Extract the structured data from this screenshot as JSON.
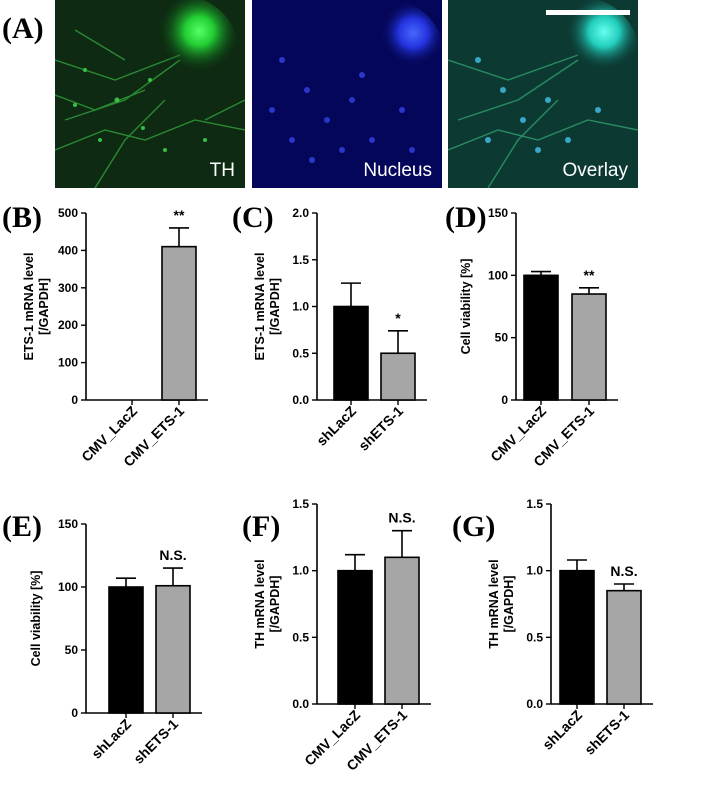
{
  "figure": {
    "panel_letters": [
      "(A)",
      "(B)",
      "(C)",
      "(D)",
      "(E)",
      "(F)",
      "(G)"
    ],
    "micrographs": [
      {
        "label": "TH",
        "channel": "green",
        "color": "#22dd33"
      },
      {
        "label": "Nucleus",
        "channel": "blue",
        "color": "#3344ff"
      },
      {
        "label": "Overlay",
        "channel": "overlay",
        "color": "#33ddcc"
      }
    ]
  },
  "colors": {
    "black_bar": "#000000",
    "gray_bar": "#a6a6a6"
  },
  "chart_data": [
    {
      "type": "bar",
      "panel": "B",
      "categories": [
        "CMV_LacZ",
        "CMV_ETS-1"
      ],
      "values": [
        0,
        410
      ],
      "errors": [
        0,
        50
      ],
      "bar_colors": [
        "#000000",
        "#a6a6a6"
      ],
      "annotations": [
        "",
        "**"
      ],
      "ylabel": "ETS-1 mRNA level\n[/GAPDH]",
      "ylim": [
        0,
        500
      ],
      "yticks": [
        "0",
        "100",
        "200",
        "300",
        "400",
        "500"
      ]
    },
    {
      "type": "bar",
      "panel": "C",
      "categories": [
        "shLacZ",
        "shETS-1"
      ],
      "values": [
        1.0,
        0.5
      ],
      "errors": [
        0.25,
        0.24
      ],
      "bar_colors": [
        "#000000",
        "#a6a6a6"
      ],
      "annotations": [
        "",
        "*"
      ],
      "ylabel": "ETS-1 mRNA level\n[/GAPDH]",
      "ylim": [
        0,
        2.0
      ],
      "yticks": [
        "0.0",
        "0.5",
        "1.0",
        "1.5",
        "2.0"
      ]
    },
    {
      "type": "bar",
      "panel": "D",
      "categories": [
        "CMV_LacZ",
        "CMV_ETS-1"
      ],
      "values": [
        100,
        85
      ],
      "errors": [
        3,
        5
      ],
      "bar_colors": [
        "#000000",
        "#a6a6a6"
      ],
      "annotations": [
        "",
        "**"
      ],
      "ylabel": "Cell viability [%]",
      "ylim": [
        0,
        150
      ],
      "yticks": [
        "0",
        "50",
        "100",
        "150"
      ]
    },
    {
      "type": "bar",
      "panel": "E",
      "categories": [
        "shLacZ",
        "shETS-1"
      ],
      "values": [
        100,
        101
      ],
      "errors": [
        7,
        14
      ],
      "bar_colors": [
        "#000000",
        "#a6a6a6"
      ],
      "annotations": [
        "",
        "N.S."
      ],
      "ylabel": "Cell viability [%]",
      "ylim": [
        0,
        150
      ],
      "yticks": [
        "0",
        "50",
        "100",
        "150"
      ]
    },
    {
      "type": "bar",
      "panel": "F",
      "categories": [
        "CMV_LacZ",
        "CMV_ETS-1"
      ],
      "values": [
        1.0,
        1.1
      ],
      "errors": [
        0.12,
        0.2
      ],
      "bar_colors": [
        "#000000",
        "#a6a6a6"
      ],
      "annotations": [
        "",
        "N.S."
      ],
      "ylabel": "TH mRNA level\n[/GAPDH]",
      "ylim": [
        0,
        1.5
      ],
      "yticks": [
        "0.0",
        "0.5",
        "1.0",
        "1.5"
      ]
    },
    {
      "type": "bar",
      "panel": "G",
      "categories": [
        "shLacZ",
        "shETS-1"
      ],
      "values": [
        1.0,
        0.85
      ],
      "errors": [
        0.08,
        0.05
      ],
      "bar_colors": [
        "#000000",
        "#a6a6a6"
      ],
      "annotations": [
        "",
        "N.S."
      ],
      "ylabel": "TH mRNA level\n[/GAPDH]",
      "ylim": [
        0,
        1.5
      ],
      "yticks": [
        "0.0",
        "0.5",
        "1.0",
        "1.5"
      ]
    }
  ]
}
